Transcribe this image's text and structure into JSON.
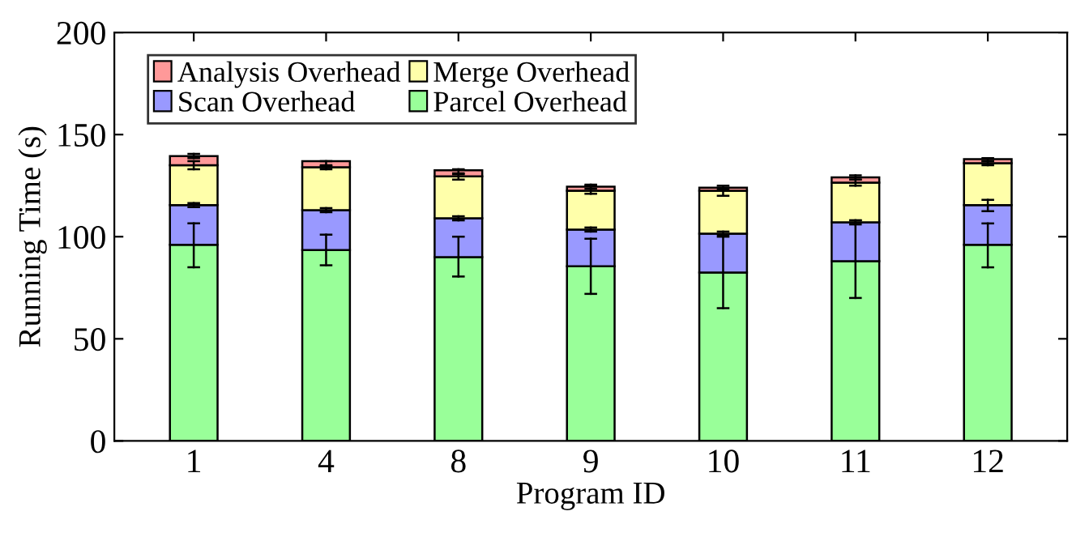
{
  "chart_data": {
    "type": "bar",
    "stacked": true,
    "xlabel": "Program ID",
    "ylabel": "Running Time (s)",
    "categories": [
      "1",
      "4",
      "8",
      "9",
      "10",
      "11",
      "12"
    ],
    "series": [
      {
        "name": "Parcel Overhead",
        "color": "#99ff99",
        "values": [
          96,
          93.5,
          90,
          85.5,
          82.5,
          88,
          96
        ],
        "errors": [
          [
            85,
            106.5
          ],
          [
            86,
            101
          ],
          [
            80.5,
            100
          ],
          [
            72,
            99
          ],
          [
            65,
            101
          ],
          [
            70,
            108
          ],
          [
            85,
            106.5
          ]
        ]
      },
      {
        "name": "Scan Overhead",
        "color": "#9999ff",
        "values": [
          19.5,
          19.5,
          19,
          18,
          19,
          19,
          19.5
        ],
        "errors": [
          [
            114.5,
            116.5
          ],
          [
            112,
            114
          ],
          [
            108,
            110
          ],
          [
            102.5,
            104.5
          ],
          [
            100,
            102.5
          ],
          [
            106,
            108
          ],
          [
            112.5,
            118
          ]
        ]
      },
      {
        "name": "Merge Overhead",
        "color": "#ffffaa",
        "values": [
          19.5,
          21,
          20.5,
          19,
          21,
          19.5,
          20.5
        ],
        "errors": [
          [
            133,
            137
          ],
          [
            133,
            135
          ],
          [
            128,
            131
          ],
          [
            121,
            125
          ],
          [
            120,
            124
          ],
          [
            125,
            128
          ],
          [
            135,
            137
          ]
        ]
      },
      {
        "name": "Analysis Overhead",
        "color": "#ff9999",
        "values": [
          4.5,
          3,
          3,
          2,
          1.5,
          2.5,
          2
        ],
        "errors": [
          [
            138.5,
            140.5
          ],
          [
            134.5,
            137
          ],
          [
            130.5,
            133
          ],
          [
            123.5,
            125.5
          ],
          [
            123,
            125
          ],
          [
            128,
            130
          ],
          [
            137,
            138.5
          ]
        ]
      }
    ],
    "ylim": [
      0,
      200
    ],
    "yticks": [
      0,
      50,
      100,
      150,
      200
    ],
    "legend": "top left",
    "grid": false
  }
}
